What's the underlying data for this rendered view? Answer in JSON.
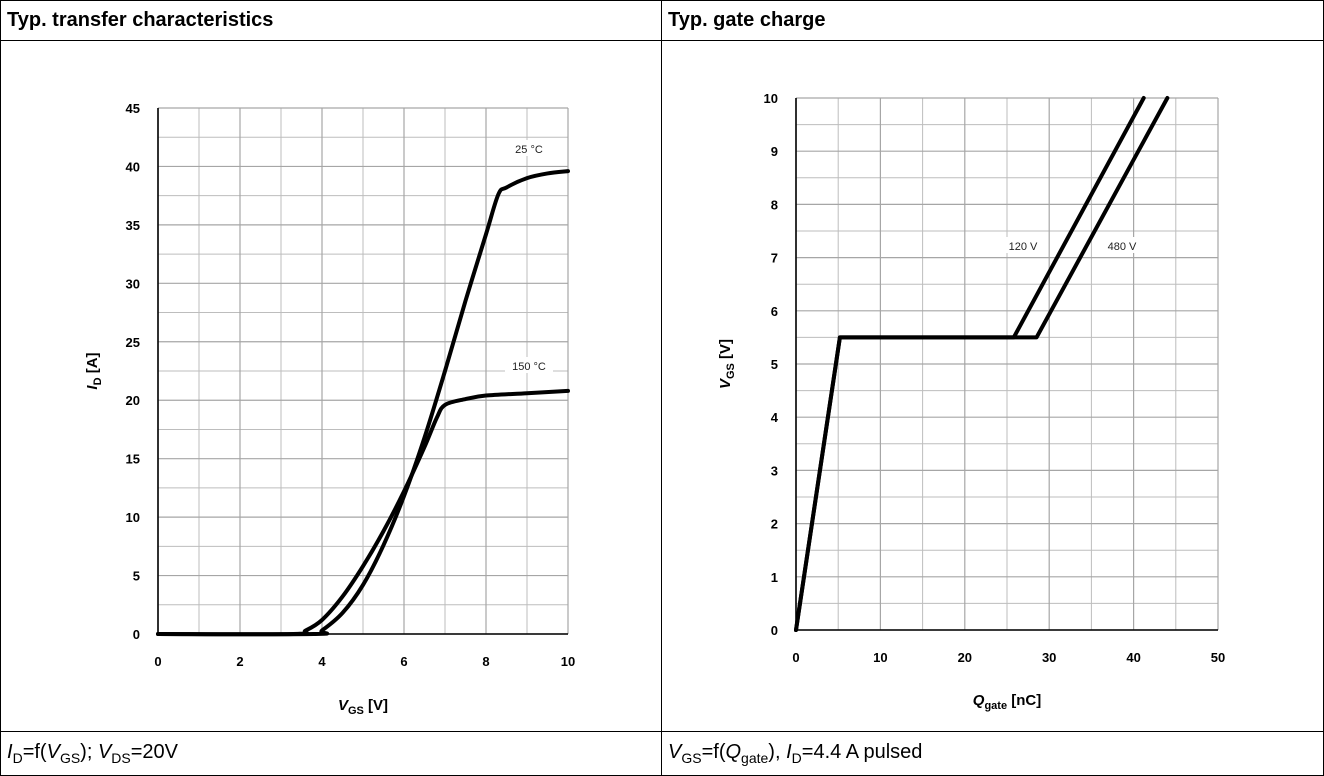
{
  "panels": {
    "left": {
      "title": "Typ. transfer characteristics",
      "caption": {
        "i": "I",
        "d_sub": "D",
        "eq1": "=f(",
        "v1": "V",
        "gs_sub": "GS",
        "mid": "); ",
        "v2": "V",
        "ds_sub": "DS",
        "tail": "=20V"
      }
    },
    "right": {
      "title": "Typ. gate charge",
      "caption": {
        "v": "V",
        "gs_sub": "GS",
        "eq1": "=f(",
        "q": "Q",
        "gate_sub": "gate",
        "mid": "), ",
        "i": "I",
        "d_sub": "D",
        "tail": "=4.4 A pulsed"
      }
    }
  },
  "chart_data": [
    {
      "type": "line",
      "title": "Typ. transfer characteristics",
      "xlabel": {
        "main": "V",
        "sub": "GS",
        "unit": " [V]"
      },
      "ylabel": {
        "main": "I",
        "sub": "D",
        "unit": " [A]"
      },
      "xlim": [
        0,
        10
      ],
      "ylim": [
        0,
        45
      ],
      "xticks": [
        0,
        2,
        4,
        6,
        8,
        10
      ],
      "yticks": [
        0,
        5,
        10,
        15,
        20,
        25,
        30,
        35,
        40,
        45
      ],
      "grid": true,
      "series": [
        {
          "name": "25 °C",
          "x": [
            0,
            3.8,
            4.0,
            4.5,
            5.0,
            5.5,
            6.0,
            6.5,
            7.0,
            7.5,
            8.0,
            8.3,
            8.5,
            9.0,
            9.5,
            10.0
          ],
          "y": [
            0,
            0,
            0.3,
            1.8,
            4.2,
            7.6,
            11.8,
            16.8,
            22.5,
            28.5,
            34.2,
            37.6,
            38.2,
            39.0,
            39.4,
            39.6
          ]
        },
        {
          "name": "150 °C",
          "x": [
            0,
            3.3,
            3.6,
            4.0,
            4.5,
            5.0,
            5.5,
            6.0,
            6.5,
            6.8,
            7.0,
            7.5,
            8.0,
            9.0,
            10.0
          ],
          "y": [
            0,
            0,
            0.3,
            1.2,
            3.2,
            5.8,
            8.8,
            12.2,
            16.0,
            18.5,
            19.6,
            20.1,
            20.4,
            20.6,
            20.8
          ]
        }
      ]
    },
    {
      "type": "line",
      "title": "Typ. gate charge",
      "xlabel": {
        "main": "Q",
        "sub": "gate",
        "unit": " [nC]"
      },
      "ylabel": {
        "main": "V",
        "sub": "GS",
        "unit": " [V]"
      },
      "xlim": [
        0,
        50
      ],
      "ylim": [
        0,
        10
      ],
      "xticks": [
        0,
        10,
        20,
        30,
        40,
        50
      ],
      "yticks": [
        0,
        1,
        2,
        3,
        4,
        5,
        6,
        7,
        8,
        9,
        10
      ],
      "grid": true,
      "series": [
        {
          "name": "120 V",
          "x": [
            0,
            5.2,
            25.8,
            41.2
          ],
          "y": [
            0,
            5.5,
            5.5,
            10
          ]
        },
        {
          "name": "480 V",
          "x": [
            0,
            5.2,
            28.5,
            44.0
          ],
          "y": [
            0,
            5.5,
            5.5,
            10
          ]
        }
      ]
    }
  ]
}
